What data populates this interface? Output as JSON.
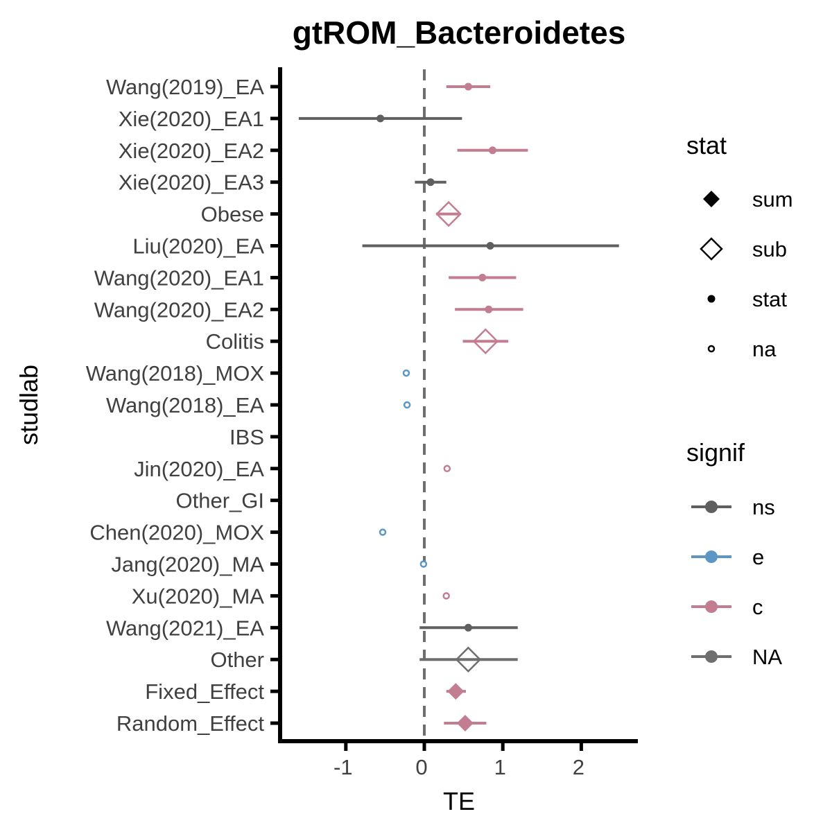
{
  "chart_data": {
    "type": "forest",
    "title": "gtROM_Bacteroidetes",
    "xlabel": "TE",
    "ylabel": "studlab",
    "xlim": [
      -1.7,
      2.75
    ],
    "x_ticks": [
      -1,
      0,
      1,
      2
    ],
    "x_tick_labels": [
      "-1",
      "0",
      "1",
      "2"
    ],
    "reference_line": 0,
    "grid": false,
    "colors": {
      "ns": "#5f5f5f",
      "e": "#5b96c4",
      "c": "#c27d90",
      "NA": "#6e6e6e"
    },
    "rows": [
      {
        "label": "Wang(2019)_EA",
        "te": 0.56,
        "lower": 0.28,
        "upper": 0.84,
        "stat": "stat",
        "signif": "c"
      },
      {
        "label": "Xie(2020)_EA1",
        "te": -0.56,
        "lower": -1.6,
        "upper": 0.48,
        "stat": "stat",
        "signif": "ns"
      },
      {
        "label": "Xie(2020)_EA2",
        "te": 0.87,
        "lower": 0.42,
        "upper": 1.32,
        "stat": "stat",
        "signif": "c"
      },
      {
        "label": "Xie(2020)_EA3",
        "te": 0.08,
        "lower": -0.12,
        "upper": 0.28,
        "stat": "stat",
        "signif": "ns"
      },
      {
        "label": "Obese",
        "te": 0.31,
        "lower": 0.15,
        "upper": 0.44,
        "stat": "sub",
        "signif": "c"
      },
      {
        "label": "Liu(2020)_EA",
        "te": 0.84,
        "lower": -0.79,
        "upper": 2.48,
        "stat": "stat",
        "signif": "ns"
      },
      {
        "label": "Wang(2020)_EA1",
        "te": 0.74,
        "lower": 0.31,
        "upper": 1.17,
        "stat": "stat",
        "signif": "c"
      },
      {
        "label": "Wang(2020)_EA2",
        "te": 0.82,
        "lower": 0.39,
        "upper": 1.26,
        "stat": "stat",
        "signif": "c"
      },
      {
        "label": "Colitis",
        "te": 0.78,
        "lower": 0.49,
        "upper": 1.07,
        "stat": "sub",
        "signif": "c"
      },
      {
        "label": "Wang(2018)_MOX",
        "te": -0.23,
        "stat": "na",
        "signif": "e"
      },
      {
        "label": "Wang(2018)_EA",
        "te": -0.22,
        "stat": "na",
        "signif": "e"
      },
      {
        "label": "IBS"
      },
      {
        "label": "Jin(2020)_EA",
        "te": 0.29,
        "stat": "na",
        "signif": "c"
      },
      {
        "label": "Other_GI"
      },
      {
        "label": "Chen(2020)_MOX",
        "te": -0.53,
        "stat": "na",
        "signif": "e"
      },
      {
        "label": "Jang(2020)_MA",
        "te": -0.01,
        "stat": "na",
        "signif": "e"
      },
      {
        "label": "Xu(2020)_MA",
        "te": 0.28,
        "stat": "na",
        "signif": "c"
      },
      {
        "label": "Wang(2021)_EA",
        "te": 0.56,
        "lower": -0.06,
        "upper": 1.19,
        "stat": "stat",
        "signif": "ns"
      },
      {
        "label": "Other",
        "te": 0.56,
        "lower": -0.06,
        "upper": 1.19,
        "stat": "sub",
        "signif": "NA"
      },
      {
        "label": "Fixed_Effect",
        "te": 0.4,
        "lower": 0.28,
        "upper": 0.53,
        "stat": "sum",
        "signif": "c"
      },
      {
        "label": "Random_Effect",
        "te": 0.52,
        "lower": 0.25,
        "upper": 0.79,
        "stat": "sum",
        "signif": "c"
      }
    ],
    "legends": [
      {
        "title": "stat",
        "position": "right-top",
        "entries": [
          {
            "label": "sum",
            "shape": "filled-diamond"
          },
          {
            "label": "sub",
            "shape": "open-diamond"
          },
          {
            "label": "stat",
            "shape": "filled-dot"
          },
          {
            "label": "na",
            "shape": "open-circle"
          }
        ]
      },
      {
        "title": "signif",
        "position": "right-bottom",
        "entries": [
          {
            "label": "ns",
            "color": "#5f5f5f"
          },
          {
            "label": "e",
            "color": "#5b96c4"
          },
          {
            "label": "c",
            "color": "#c27d90"
          },
          {
            "label": "NA",
            "color": "#6e6e6e"
          }
        ]
      }
    ]
  }
}
